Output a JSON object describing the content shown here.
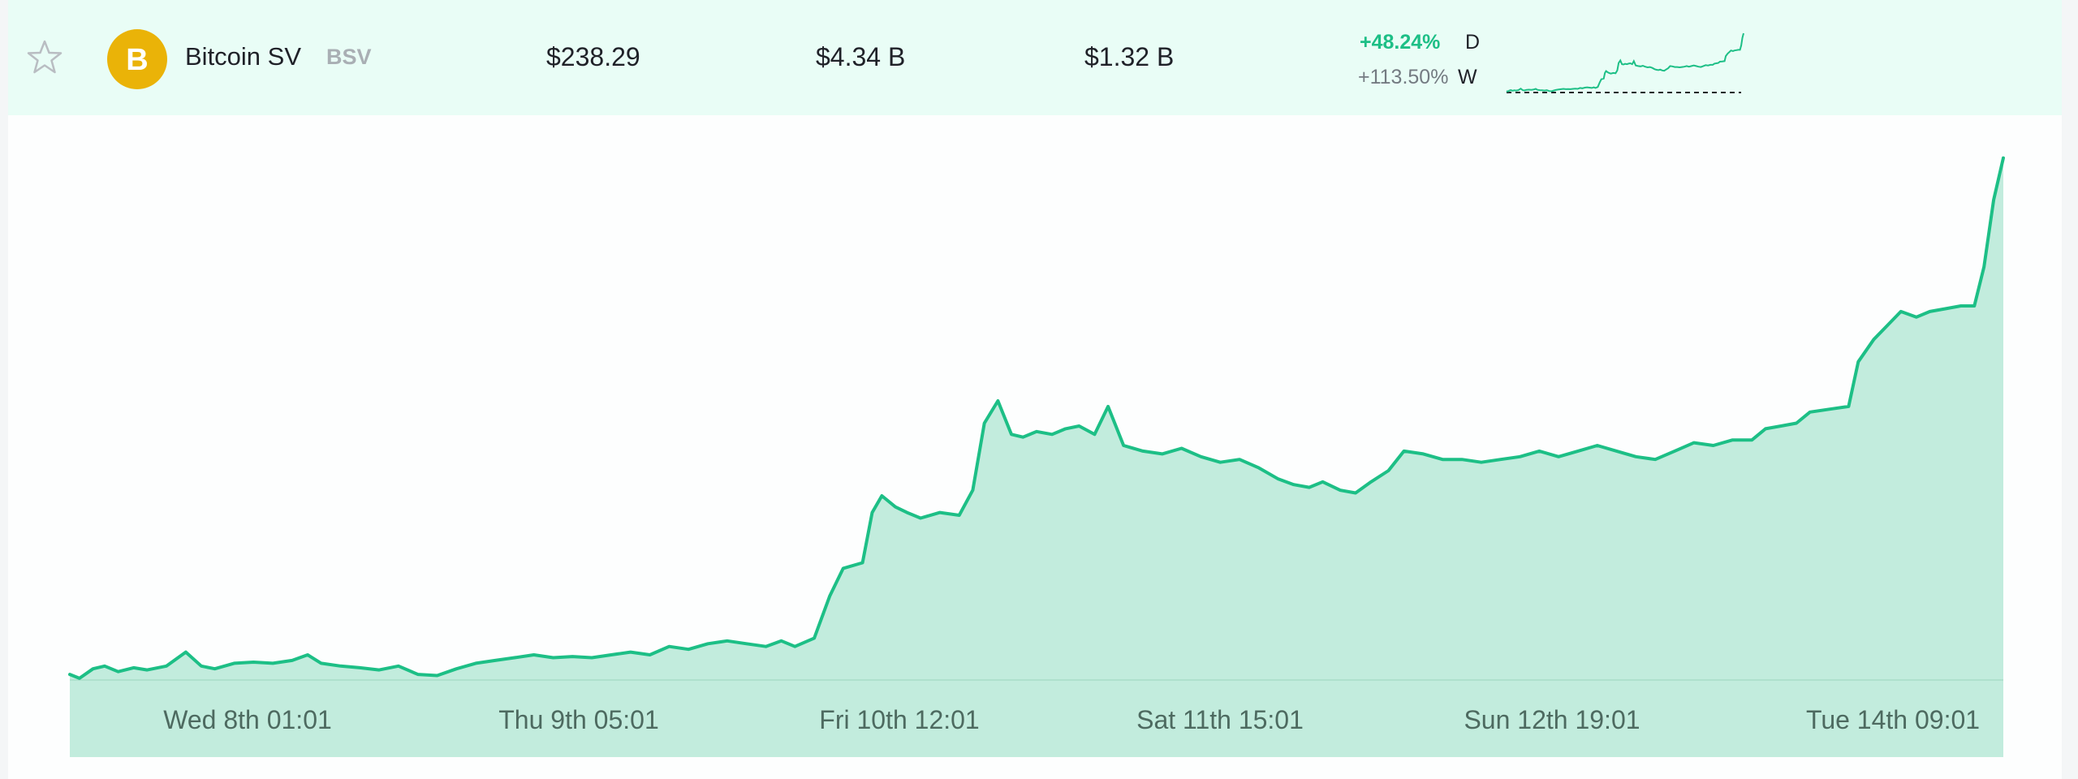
{
  "coin": {
    "name": "Bitcoin SV",
    "symbol": "BSV",
    "logo_glyph": "B",
    "logo_color": "#eab308",
    "price": "$238.29",
    "market_cap": "$4.34 B",
    "volume": "$1.32 B",
    "change_day": "+48.24%",
    "change_day_label": "D",
    "change_week": "+113.50%",
    "change_week_label": "W",
    "favorite_icon": "star-outline-icon"
  },
  "colors": {
    "line": "#1dbf86",
    "fill": "#c2ecdd",
    "row_bg": "#e9fdf6",
    "positive": "#1dbf86"
  },
  "chart_data": {
    "type": "area",
    "title": "",
    "xlabel": "",
    "ylabel": "",
    "x_tick_labels": [
      "Wed 8th 01:01",
      "Thu 9th 05:01",
      "Fri 10th 12:01",
      "Sat 11th 15:01",
      "Sun 12th 19:01",
      "Tue 14th 09:01"
    ],
    "ylim": [
      0,
      1
    ],
    "grid": false,
    "legend": "none",
    "series": [
      {
        "values": [
          [
            0,
            0.01
          ],
          [
            0.005,
            0.003
          ],
          [
            0.012,
            0.02
          ],
          [
            0.018,
            0.025
          ],
          [
            0.025,
            0.015
          ],
          [
            0.033,
            0.022
          ],
          [
            0.04,
            0.018
          ],
          [
            0.05,
            0.025
          ],
          [
            0.06,
            0.05
          ],
          [
            0.068,
            0.025
          ],
          [
            0.075,
            0.02
          ],
          [
            0.085,
            0.03
          ],
          [
            0.095,
            0.032
          ],
          [
            0.105,
            0.03
          ],
          [
            0.115,
            0.035
          ],
          [
            0.123,
            0.045
          ],
          [
            0.13,
            0.03
          ],
          [
            0.14,
            0.025
          ],
          [
            0.15,
            0.022
          ],
          [
            0.16,
            0.018
          ],
          [
            0.17,
            0.025
          ],
          [
            0.18,
            0.01
          ],
          [
            0.19,
            0.008
          ],
          [
            0.2,
            0.02
          ],
          [
            0.21,
            0.03
          ],
          [
            0.22,
            0.035
          ],
          [
            0.23,
            0.04
          ],
          [
            0.24,
            0.045
          ],
          [
            0.25,
            0.04
          ],
          [
            0.26,
            0.042
          ],
          [
            0.27,
            0.04
          ],
          [
            0.28,
            0.045
          ],
          [
            0.29,
            0.05
          ],
          [
            0.3,
            0.045
          ],
          [
            0.31,
            0.06
          ],
          [
            0.32,
            0.055
          ],
          [
            0.33,
            0.065
          ],
          [
            0.34,
            0.07
          ],
          [
            0.35,
            0.065
          ],
          [
            0.36,
            0.06
          ],
          [
            0.368,
            0.07
          ],
          [
            0.375,
            0.06
          ],
          [
            0.385,
            0.075
          ],
          [
            0.393,
            0.15
          ],
          [
            0.4,
            0.2
          ],
          [
            0.41,
            0.21
          ],
          [
            0.415,
            0.3
          ],
          [
            0.42,
            0.33
          ],
          [
            0.427,
            0.31
          ],
          [
            0.433,
            0.3
          ],
          [
            0.44,
            0.29
          ],
          [
            0.45,
            0.3
          ],
          [
            0.46,
            0.295
          ],
          [
            0.467,
            0.34
          ],
          [
            0.473,
            0.46
          ],
          [
            0.48,
            0.5
          ],
          [
            0.487,
            0.44
          ],
          [
            0.493,
            0.435
          ],
          [
            0.5,
            0.445
          ],
          [
            0.508,
            0.44
          ],
          [
            0.515,
            0.45
          ],
          [
            0.522,
            0.455
          ],
          [
            0.53,
            0.44
          ],
          [
            0.537,
            0.49
          ],
          [
            0.545,
            0.42
          ],
          [
            0.555,
            0.41
          ],
          [
            0.565,
            0.405
          ],
          [
            0.575,
            0.415
          ],
          [
            0.585,
            0.4
          ],
          [
            0.595,
            0.39
          ],
          [
            0.605,
            0.395
          ],
          [
            0.615,
            0.38
          ],
          [
            0.625,
            0.36
          ],
          [
            0.633,
            0.35
          ],
          [
            0.641,
            0.345
          ],
          [
            0.648,
            0.355
          ],
          [
            0.657,
            0.34
          ],
          [
            0.665,
            0.335
          ],
          [
            0.673,
            0.355
          ],
          [
            0.682,
            0.375
          ],
          [
            0.69,
            0.41
          ],
          [
            0.7,
            0.405
          ],
          [
            0.71,
            0.395
          ],
          [
            0.72,
            0.395
          ],
          [
            0.73,
            0.39
          ],
          [
            0.74,
            0.395
          ],
          [
            0.75,
            0.4
          ],
          [
            0.76,
            0.41
          ],
          [
            0.77,
            0.4
          ],
          [
            0.78,
            0.41
          ],
          [
            0.79,
            0.42
          ],
          [
            0.8,
            0.41
          ],
          [
            0.81,
            0.4
          ],
          [
            0.82,
            0.395
          ],
          [
            0.83,
            0.41
          ],
          [
            0.84,
            0.425
          ],
          [
            0.85,
            0.42
          ],
          [
            0.86,
            0.43
          ],
          [
            0.87,
            0.43
          ],
          [
            0.877,
            0.45
          ],
          [
            0.885,
            0.455
          ],
          [
            0.893,
            0.46
          ],
          [
            0.9,
            0.48
          ],
          [
            0.91,
            0.485
          ],
          [
            0.92,
            0.49
          ],
          [
            0.925,
            0.57
          ],
          [
            0.933,
            0.61
          ],
          [
            0.94,
            0.635
          ],
          [
            0.947,
            0.66
          ],
          [
            0.955,
            0.65
          ],
          [
            0.962,
            0.66
          ],
          [
            0.97,
            0.665
          ],
          [
            0.978,
            0.67
          ],
          [
            0.985,
            0.67
          ],
          [
            0.99,
            0.74
          ],
          [
            0.995,
            0.86
          ],
          [
            1.0,
            0.935
          ]
        ]
      }
    ]
  }
}
